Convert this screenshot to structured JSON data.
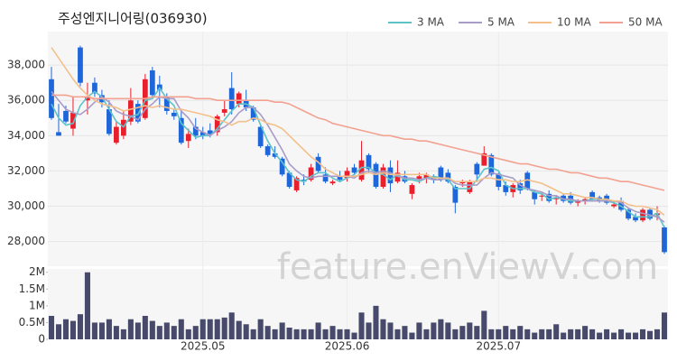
{
  "chart_data": {
    "type": "candlestick",
    "title": "주성엔지니어링(036930)",
    "watermark": "feature.enViewV.com",
    "up_color": "#e8202e",
    "down_color": "#1f66d9",
    "grid": true,
    "legend": "top-right",
    "xlim": [
      -0.5,
      85.5
    ],
    "xticks": [
      {
        "value": 21,
        "label": "2025.05"
      },
      {
        "value": 41,
        "label": "2025.06"
      },
      {
        "value": 62,
        "label": "2025.07"
      }
    ],
    "ylim": [
      26600,
      39900
    ],
    "yticks": [
      {
        "value": 28000,
        "label": "28,000"
      },
      {
        "value": 30000,
        "label": "30,000"
      },
      {
        "value": 32000,
        "label": "32,000"
      },
      {
        "value": 34000,
        "label": "34,000"
      },
      {
        "value": 36000,
        "label": "36,000"
      },
      {
        "value": 38000,
        "label": "38,000"
      }
    ],
    "open": [
      37200,
      34200,
      35400,
      34400,
      39000,
      36000,
      37000,
      36300,
      35500,
      33600,
      34000,
      34800,
      35800,
      35000,
      37700,
      36900,
      36200,
      35300,
      35000,
      33700,
      34500,
      34200,
      34300,
      34200,
      35300,
      36700,
      35800,
      36000,
      35600,
      34500,
      33400,
      33000,
      32700,
      31900,
      30900,
      31500,
      31500,
      32800,
      31800,
      31300,
      31700,
      31600,
      32200,
      31500,
      32900,
      32400,
      31100,
      32200,
      31400,
      31700,
      30700,
      31500,
      31600,
      31700,
      32200,
      31900,
      31100,
      31300,
      30800,
      32400,
      32300,
      32900,
      31800,
      31200,
      30800,
      31300,
      31900,
      30800,
      30600,
      30700,
      30400,
      30600,
      30600,
      30200,
      30300,
      30800,
      30500,
      30600,
      30000,
      30300,
      29800,
      29400,
      29200,
      29800,
      29500,
      28800
    ],
    "high": [
      37900,
      35800,
      35700,
      36200,
      39100,
      37000,
      37300,
      36600,
      36000,
      34800,
      35400,
      36700,
      36000,
      37500,
      37900,
      37400,
      36400,
      35500,
      35500,
      34400,
      35000,
      34500,
      34700,
      35200,
      36000,
      37600,
      36500,
      36600,
      35700,
      34600,
      33500,
      33400,
      32800,
      32000,
      31700,
      31800,
      32400,
      33000,
      32200,
      31500,
      32000,
      32200,
      32400,
      33700,
      33000,
      32500,
      32400,
      32600,
      32600,
      32000,
      31300,
      31900,
      31900,
      31800,
      32300,
      32100,
      31200,
      31500,
      31500,
      32500,
      33400,
      33000,
      31900,
      31400,
      31300,
      31500,
      32000,
      30900,
      30800,
      30900,
      30600,
      30700,
      30800,
      30400,
      30500,
      30900,
      30600,
      30700,
      30300,
      30500,
      29900,
      29600,
      29900,
      29900,
      30000,
      28900
    ],
    "low": [
      34900,
      34000,
      34700,
      34000,
      36800,
      35200,
      36200,
      35600,
      34000,
      33500,
      33800,
      34600,
      34700,
      34900,
      36200,
      35600,
      35200,
      34900,
      33500,
      33300,
      33800,
      33800,
      33900,
      34000,
      35100,
      35200,
      35600,
      35400,
      34800,
      33300,
      32800,
      32700,
      31700,
      31000,
      30800,
      31200,
      31400,
      31900,
      31300,
      31200,
      31400,
      31400,
      31800,
      31400,
      31900,
      31000,
      31000,
      30800,
      31300,
      31300,
      30400,
      31300,
      31300,
      31300,
      31400,
      31300,
      29600,
      31100,
      30700,
      31500,
      32300,
      31700,
      30900,
      30600,
      30500,
      30700,
      30900,
      30100,
      30300,
      30200,
      30100,
      30200,
      30100,
      30000,
      30100,
      30300,
      30200,
      30100,
      29900,
      29700,
      29200,
      29100,
      29100,
      29200,
      29200,
      27300
    ],
    "close": [
      35000,
      34000,
      34800,
      35300,
      37000,
      36200,
      36400,
      35900,
      34100,
      34500,
      34900,
      36000,
      34800,
      37200,
      36300,
      36600,
      35400,
      35100,
      33600,
      34100,
      34000,
      34000,
      34100,
      35100,
      35500,
      35500,
      36400,
      35600,
      34900,
      33400,
      32900,
      32800,
      31800,
      31100,
      31600,
      31400,
      32200,
      32000,
      31400,
      31400,
      31500,
      32000,
      31900,
      32600,
      32100,
      31100,
      32200,
      31300,
      31900,
      31400,
      31200,
      31700,
      31800,
      31500,
      31500,
      31400,
      30200,
      31400,
      31400,
      31800,
      33000,
      31800,
      31100,
      30800,
      31200,
      30900,
      31000,
      30400,
      30600,
      30300,
      30500,
      30300,
      30200,
      30300,
      30400,
      30400,
      30300,
      30200,
      30100,
      29800,
      29300,
      29200,
      29800,
      29300,
      29600,
      27400
    ],
    "series": [
      {
        "name": "3 MA",
        "color": "#5cc3c9",
        "values": [
          35800,
          35000,
          34600,
          34700,
          35700,
          36200,
          36500,
          36200,
          35500,
          34800,
          34500,
          35100,
          35200,
          36000,
          36100,
          36700,
          36100,
          35700,
          34700,
          34300,
          33900,
          34000,
          34000,
          34400,
          34900,
          35400,
          35800,
          35800,
          35600,
          34600,
          33700,
          33000,
          32500,
          31900,
          31500,
          31400,
          31700,
          31900,
          31900,
          31600,
          31400,
          31600,
          31800,
          32200,
          32200,
          31900,
          31800,
          31500,
          31800,
          31500,
          31500,
          31400,
          31600,
          31700,
          31600,
          31500,
          31000,
          31000,
          31000,
          31500,
          32100,
          32200,
          32000,
          31200,
          31000,
          31000,
          31000,
          30800,
          30700,
          30400,
          30500,
          30400,
          30300,
          30300,
          30300,
          30400,
          30400,
          30300,
          30200,
          30000,
          29700,
          29400,
          29400,
          29400,
          29600,
          28800
        ]
      },
      {
        "name": "5 MA",
        "color": "#a99cc9",
        "values": [
          36500,
          36000,
          35500,
          35300,
          35200,
          35500,
          35900,
          36200,
          35900,
          35400,
          35200,
          35100,
          34900,
          35500,
          35800,
          36200,
          36100,
          36100,
          35400,
          35000,
          34400,
          34200,
          34000,
          34300,
          34500,
          34800,
          35300,
          35600,
          35600,
          35200,
          34600,
          33900,
          33200,
          32400,
          32000,
          31700,
          31600,
          31700,
          31700,
          31700,
          31700,
          31700,
          31600,
          31900,
          32000,
          31900,
          32000,
          31900,
          31700,
          31600,
          31600,
          31500,
          31600,
          31500,
          31500,
          31600,
          31300,
          31200,
          31200,
          31200,
          31600,
          31900,
          31800,
          31700,
          31600,
          31200,
          31000,
          30900,
          30800,
          30600,
          30600,
          30400,
          30400,
          30300,
          30300,
          30300,
          30300,
          30300,
          30300,
          30200,
          29900,
          29700,
          29600,
          29500,
          29400,
          29100
        ]
      },
      {
        "name": "10 MA",
        "color": "#f3c08c",
        "values": [
          39000,
          38400,
          37800,
          37200,
          36700,
          36300,
          36000,
          35800,
          35700,
          35600,
          35400,
          35500,
          35600,
          35700,
          35600,
          35700,
          35600,
          35500,
          35500,
          35400,
          35300,
          35200,
          35100,
          34900,
          34800,
          34600,
          34800,
          34800,
          35000,
          34900,
          34700,
          34600,
          34400,
          34000,
          33600,
          33200,
          32800,
          32500,
          32100,
          31900,
          31700,
          31700,
          31700,
          31800,
          31900,
          31800,
          31900,
          31800,
          31800,
          31800,
          31800,
          31800,
          31800,
          31600,
          31600,
          31600,
          31400,
          31400,
          31400,
          31400,
          31600,
          31600,
          31500,
          31500,
          31400,
          31400,
          31500,
          31400,
          31300,
          31100,
          30900,
          30700,
          30700,
          30600,
          30500,
          30500,
          30400,
          30400,
          30300,
          30300,
          30100,
          30000,
          30000,
          29900,
          29800,
          29500
        ]
      },
      {
        "name": "50 MA",
        "color": "#f3a190",
        "values": [
          36300,
          36300,
          36300,
          36200,
          36200,
          36200,
          36100,
          36100,
          36100,
          36100,
          36100,
          36100,
          36100,
          36100,
          36200,
          36200,
          36200,
          36200,
          36200,
          36200,
          36100,
          36100,
          36100,
          36000,
          36000,
          36000,
          36000,
          36000,
          36000,
          36000,
          36000,
          35900,
          35900,
          35800,
          35600,
          35400,
          35200,
          35000,
          34900,
          34700,
          34600,
          34500,
          34400,
          34300,
          34200,
          34100,
          34000,
          34000,
          33900,
          33800,
          33800,
          33700,
          33700,
          33600,
          33500,
          33400,
          33300,
          33200,
          33100,
          33000,
          32900,
          32800,
          32700,
          32600,
          32500,
          32400,
          32400,
          32300,
          32200,
          32100,
          32100,
          32000,
          31900,
          31900,
          31800,
          31700,
          31600,
          31600,
          31500,
          31400,
          31400,
          31300,
          31200,
          31100,
          31000,
          30900
        ]
      }
    ],
    "volume": {
      "color": "#474a6b",
      "ylim": [
        0,
        2100000
      ],
      "yticks": [
        {
          "value": 0,
          "label": "0"
        },
        {
          "value": 500000,
          "label": "0.5M"
        },
        {
          "value": 1000000,
          "label": "1M"
        },
        {
          "value": 1500000,
          "label": "1.5M"
        },
        {
          "value": 2000000,
          "label": "2M"
        }
      ],
      "values": [
        700000,
        450000,
        600000,
        550000,
        750000,
        2000000,
        500000,
        500000,
        600000,
        400000,
        300000,
        600000,
        500000,
        700000,
        550000,
        400000,
        500000,
        400000,
        600000,
        300000,
        400000,
        600000,
        600000,
        600000,
        650000,
        800000,
        550000,
        450000,
        300000,
        600000,
        400000,
        300000,
        500000,
        350000,
        300000,
        300000,
        300000,
        500000,
        300000,
        400000,
        300000,
        300000,
        200000,
        800000,
        500000,
        1000000,
        600000,
        500000,
        300000,
        400000,
        200000,
        500000,
        300000,
        500000,
        600000,
        500000,
        300000,
        400000,
        500000,
        400000,
        850000,
        300000,
        300000,
        400000,
        300000,
        400000,
        300000,
        200000,
        300000,
        300000,
        450000,
        200000,
        300000,
        300000,
        400000,
        300000,
        200000,
        300000,
        200000,
        300000,
        200000,
        200000,
        300000,
        250000,
        300000,
        800000
      ]
    }
  }
}
